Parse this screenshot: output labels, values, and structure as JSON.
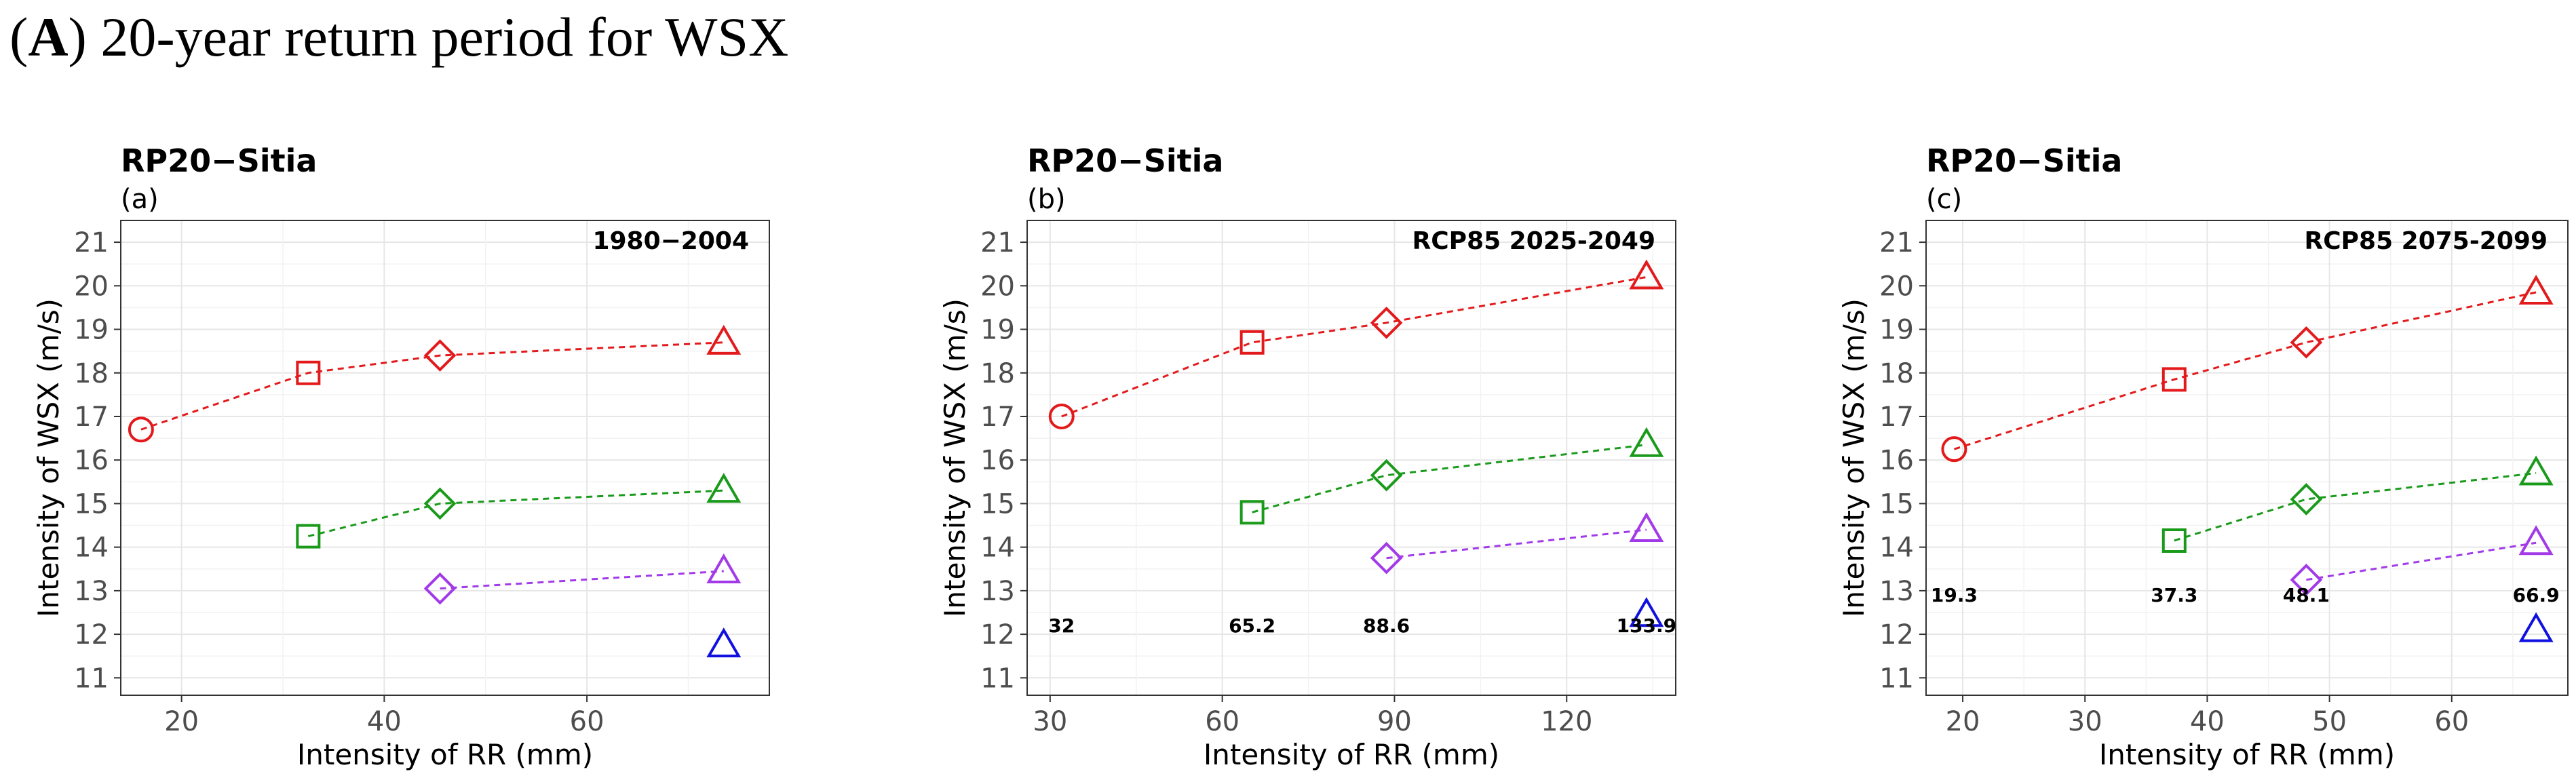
{
  "figure": {
    "label_letter": "A",
    "title": "20-year return period for WSX"
  },
  "colors": {
    "red": "#e31a1c",
    "green": "#1a9a1a",
    "purple": "#a23ae8",
    "blue": "#1010e0"
  },
  "chart_data": [
    {
      "type": "scatter",
      "title": "RP20−Sitia",
      "subtitle": "(a)",
      "annotation": "1980−2004",
      "xlabel": "Intensity of RR (mm)",
      "ylabel": "Intensity of WSX (m/s)",
      "xlim": [
        14,
        78
      ],
      "ylim": [
        10.6,
        21.5
      ],
      "xticks": [
        20,
        40,
        60
      ],
      "yticks": [
        11,
        12,
        13,
        14,
        15,
        16,
        17,
        18,
        19,
        20,
        21
      ],
      "grid": true,
      "series": [
        {
          "color": "red",
          "points": [
            {
              "x": 16,
              "y": 16.7,
              "shape": "circle"
            },
            {
              "x": 32.5,
              "y": 18.0,
              "shape": "square"
            },
            {
              "x": 45.5,
              "y": 18.4,
              "shape": "diamond"
            },
            {
              "x": 73.5,
              "y": 18.7,
              "shape": "triangle"
            }
          ]
        },
        {
          "color": "green",
          "points": [
            {
              "x": 32.5,
              "y": 14.25,
              "shape": "square"
            },
            {
              "x": 45.5,
              "y": 15.0,
              "shape": "diamond"
            },
            {
              "x": 73.5,
              "y": 15.3,
              "shape": "triangle"
            }
          ]
        },
        {
          "color": "purple",
          "points": [
            {
              "x": 45.5,
              "y": 13.05,
              "shape": "diamond"
            },
            {
              "x": 73.5,
              "y": 13.45,
              "shape": "triangle"
            }
          ]
        },
        {
          "color": "blue",
          "points": [
            {
              "x": 73.5,
              "y": 11.75,
              "shape": "triangle"
            }
          ]
        }
      ],
      "value_labels": []
    },
    {
      "type": "scatter",
      "title": "RP20−Sitia",
      "subtitle": "(b)",
      "annotation": "RCP85 2025-2049",
      "xlabel": "Intensity of RR (mm)",
      "ylabel": "Intensity of WSX (m/s)",
      "xlim": [
        26,
        139
      ],
      "ylim": [
        10.6,
        21.5
      ],
      "xticks": [
        30,
        60,
        90,
        120
      ],
      "yticks": [
        11,
        12,
        13,
        14,
        15,
        16,
        17,
        18,
        19,
        20,
        21
      ],
      "grid": true,
      "series": [
        {
          "color": "red",
          "points": [
            {
              "x": 32,
              "y": 17.0,
              "shape": "circle"
            },
            {
              "x": 65.2,
              "y": 18.7,
              "shape": "square"
            },
            {
              "x": 88.6,
              "y": 19.15,
              "shape": "diamond"
            },
            {
              "x": 133.9,
              "y": 20.2,
              "shape": "triangle"
            }
          ]
        },
        {
          "color": "green",
          "points": [
            {
              "x": 65.2,
              "y": 14.8,
              "shape": "square"
            },
            {
              "x": 88.6,
              "y": 15.65,
              "shape": "diamond"
            },
            {
              "x": 133.9,
              "y": 16.35,
              "shape": "triangle"
            }
          ]
        },
        {
          "color": "purple",
          "points": [
            {
              "x": 88.6,
              "y": 13.75,
              "shape": "diamond"
            },
            {
              "x": 133.9,
              "y": 14.4,
              "shape": "triangle"
            }
          ]
        },
        {
          "color": "blue",
          "points": [
            {
              "x": 133.9,
              "y": 12.45,
              "shape": "triangle"
            }
          ]
        }
      ],
      "value_labels": [
        {
          "x": 32,
          "y": 12.05,
          "text": "32"
        },
        {
          "x": 65.2,
          "y": 12.05,
          "text": "65.2"
        },
        {
          "x": 88.6,
          "y": 12.05,
          "text": "88.6"
        },
        {
          "x": 133.9,
          "y": 12.05,
          "text": "133.9"
        }
      ]
    },
    {
      "type": "scatter",
      "title": "RP20−Sitia",
      "subtitle": "(c)",
      "annotation": "RCP85 2075-2099",
      "xlabel": "Intensity of RR (mm)",
      "ylabel": "Intensity of WSX (m/s)",
      "xlim": [
        17,
        69.5
      ],
      "ylim": [
        10.6,
        21.5
      ],
      "xticks": [
        20,
        30,
        40,
        50,
        60
      ],
      "yticks": [
        11,
        12,
        13,
        14,
        15,
        16,
        17,
        18,
        19,
        20,
        21
      ],
      "grid": true,
      "series": [
        {
          "color": "red",
          "points": [
            {
              "x": 19.3,
              "y": 16.25,
              "shape": "circle"
            },
            {
              "x": 37.3,
              "y": 17.85,
              "shape": "square"
            },
            {
              "x": 48.1,
              "y": 18.7,
              "shape": "diamond"
            },
            {
              "x": 66.9,
              "y": 19.85,
              "shape": "triangle"
            }
          ]
        },
        {
          "color": "green",
          "points": [
            {
              "x": 37.3,
              "y": 14.15,
              "shape": "square"
            },
            {
              "x": 48.1,
              "y": 15.1,
              "shape": "diamond"
            },
            {
              "x": 66.9,
              "y": 15.7,
              "shape": "triangle"
            }
          ]
        },
        {
          "color": "purple",
          "points": [
            {
              "x": 48.1,
              "y": 13.25,
              "shape": "diamond"
            },
            {
              "x": 66.9,
              "y": 14.1,
              "shape": "triangle"
            }
          ]
        },
        {
          "color": "blue",
          "points": [
            {
              "x": 66.9,
              "y": 12.1,
              "shape": "triangle"
            }
          ]
        }
      ],
      "value_labels": [
        {
          "x": 19.3,
          "y": 12.75,
          "text": "19.3"
        },
        {
          "x": 37.3,
          "y": 12.75,
          "text": "37.3"
        },
        {
          "x": 48.1,
          "y": 12.75,
          "text": "48.1"
        },
        {
          "x": 66.9,
          "y": 12.75,
          "text": "66.9"
        }
      ]
    }
  ]
}
